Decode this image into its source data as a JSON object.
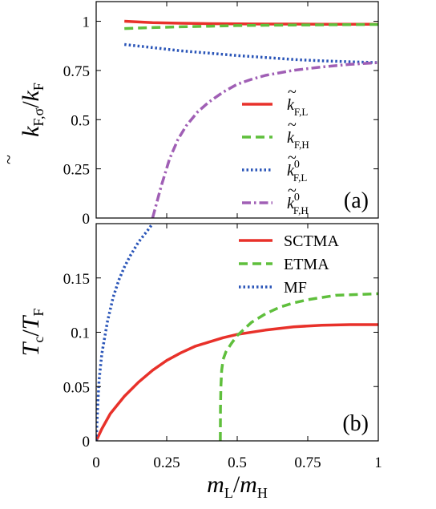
{
  "chart_data": [
    {
      "type": "line",
      "panel_label": "(a)",
      "ylabel": {
        "main": "k",
        "accent": "~",
        "sub": "F,σ",
        "sep": "/",
        "main2": "k",
        "sub2": "F"
      },
      "xlim": [
        0,
        1
      ],
      "ylim": [
        0,
        1.1
      ],
      "xticks": [
        0,
        0.25,
        0.5,
        0.75,
        1
      ],
      "yticks": [
        0,
        0.25,
        0.5,
        0.75,
        1
      ],
      "ytick_labels": [
        "0",
        "0.25",
        "0.5",
        "0.75",
        "1"
      ],
      "legend_position": "center-right",
      "series": [
        {
          "name": {
            "main": "k",
            "accent": "~",
            "sup": "",
            "sub": "F,L"
          },
          "color": "#e8312a",
          "dash": "solid",
          "x": [
            0.1,
            0.2,
            0.3,
            0.4,
            0.5,
            0.6,
            0.7,
            0.8,
            0.9,
            1.0
          ],
          "y": [
            1.0,
            0.993,
            0.99,
            0.988,
            0.987,
            0.986,
            0.986,
            0.985,
            0.985,
            0.985
          ]
        },
        {
          "name": {
            "main": "k",
            "accent": "~",
            "sup": "",
            "sub": "F,H"
          },
          "color": "#5fbf3c",
          "dash": "dashed",
          "x": [
            0.1,
            0.2,
            0.3,
            0.4,
            0.5,
            0.6,
            0.7,
            0.8,
            0.9,
            1.0
          ],
          "y": [
            0.963,
            0.968,
            0.972,
            0.975,
            0.978,
            0.98,
            0.981,
            0.982,
            0.983,
            0.984
          ]
        },
        {
          "name": {
            "main": "k",
            "accent": "~",
            "sup": "0",
            "sub": "F,L"
          },
          "color": "#2a55b8",
          "dash": "dotted",
          "x": [
            0.1,
            0.2,
            0.3,
            0.4,
            0.5,
            0.6,
            0.7,
            0.8,
            0.9,
            1.0
          ],
          "y": [
            0.882,
            0.866,
            0.85,
            0.838,
            0.826,
            0.816,
            0.806,
            0.799,
            0.794,
            0.79
          ]
        },
        {
          "name": {
            "main": "k",
            "accent": "~",
            "sup": "0",
            "sub": "F,H"
          },
          "color": "#a05fb5",
          "dash": "dashdot",
          "x": [
            0.2,
            0.23,
            0.26,
            0.29,
            0.32,
            0.36,
            0.4,
            0.45,
            0.5,
            0.55,
            0.6,
            0.7,
            0.8,
            0.9,
            1.0
          ],
          "y": [
            0.0,
            0.16,
            0.3,
            0.4,
            0.47,
            0.54,
            0.59,
            0.64,
            0.68,
            0.705,
            0.725,
            0.751,
            0.768,
            0.781,
            0.79
          ]
        }
      ]
    },
    {
      "type": "line",
      "panel_label": "(b)",
      "ylabel": {
        "main": "T",
        "sub": "c",
        "sep": "/",
        "main2": "T",
        "sub2": "F"
      },
      "xlabel": {
        "main": "m",
        "sub": "L",
        "sep": "/",
        "main2": "m",
        "sub2": "H"
      },
      "xlim": [
        0,
        1
      ],
      "ylim": [
        0,
        0.2
      ],
      "xticks": [
        0,
        0.25,
        0.5,
        0.75,
        1
      ],
      "xtick_labels": [
        "0",
        "0.25",
        "0.5",
        "0.75",
        "1"
      ],
      "yticks": [
        0,
        0.05,
        0.1,
        0.15
      ],
      "ytick_labels": [
        "0",
        "0.05",
        "0.1",
        "0.15"
      ],
      "legend_position": "top-right",
      "series": [
        {
          "name": "SCTMA",
          "color": "#e8312a",
          "dash": "solid",
          "x": [
            0,
            0.02,
            0.05,
            0.1,
            0.15,
            0.2,
            0.25,
            0.3,
            0.35,
            0.4,
            0.45,
            0.5,
            0.6,
            0.7,
            0.8,
            0.9,
            1.0
          ],
          "y": [
            0,
            0.011,
            0.025,
            0.041,
            0.054,
            0.065,
            0.074,
            0.081,
            0.087,
            0.091,
            0.095,
            0.098,
            0.102,
            0.105,
            0.1065,
            0.107,
            0.107
          ]
        },
        {
          "name": "ETMA",
          "color": "#5fbf3c",
          "dash": "dashed",
          "x": [
            0.44,
            0.4405,
            0.442,
            0.445,
            0.45,
            0.46,
            0.48,
            0.5,
            0.55,
            0.6,
            0.65,
            0.7,
            0.75,
            0.8,
            0.85,
            0.9,
            0.95,
            1.0
          ],
          "y": [
            0,
            0.03,
            0.05,
            0.065,
            0.075,
            0.082,
            0.09,
            0.097,
            0.109,
            0.117,
            0.123,
            0.127,
            0.13,
            0.132,
            0.134,
            0.1345,
            0.135,
            0.1355
          ]
        },
        {
          "name": "MF",
          "color": "#2a55b8",
          "dash": "dotted",
          "x": [
            0,
            0.005,
            0.01,
            0.02,
            0.04,
            0.06,
            0.08,
            0.1,
            0.12,
            0.15,
            0.18,
            0.2
          ],
          "y": [
            0,
            0.03,
            0.055,
            0.08,
            0.11,
            0.132,
            0.148,
            0.16,
            0.17,
            0.183,
            0.193,
            0.2
          ]
        }
      ]
    }
  ]
}
